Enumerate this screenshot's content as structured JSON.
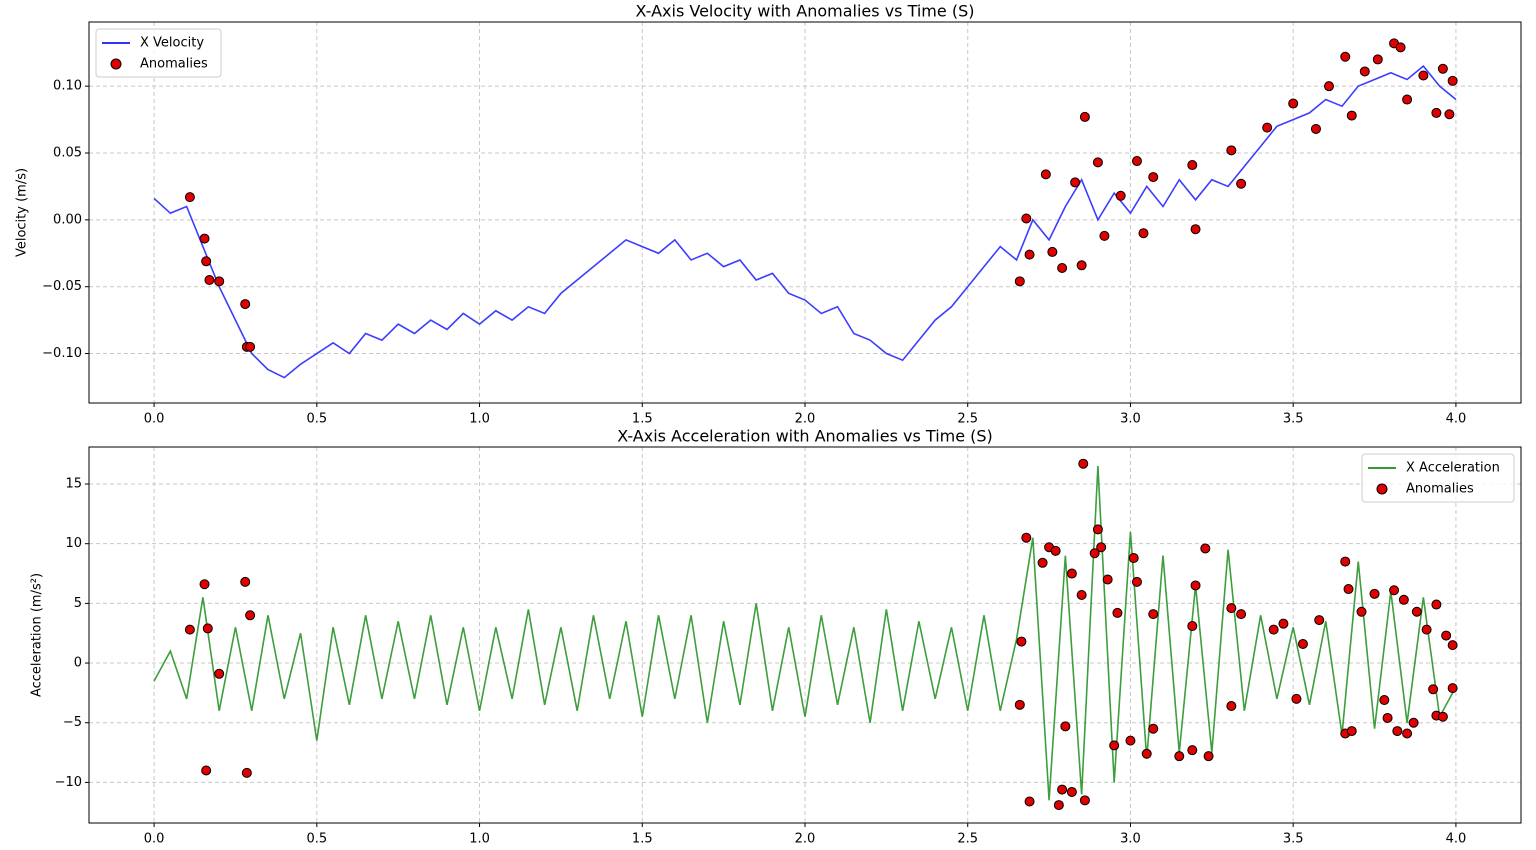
{
  "chart_data": [
    {
      "type": "line",
      "title": "X-Axis Velocity with Anomalies vs Time (S)",
      "y_label": "Velocity (m/s)",
      "xlim": [
        -0.2,
        4.2
      ],
      "ylim": [
        -0.137,
        0.148
      ],
      "grid": true,
      "legend": "upper left",
      "xticks": [
        {
          "value": 0,
          "label": "0.0"
        },
        {
          "value": 0.5,
          "label": "0.5"
        },
        {
          "value": 1,
          "label": "1.0"
        },
        {
          "value": 1.5,
          "label": "1.5"
        },
        {
          "value": 2,
          "label": "2.0"
        },
        {
          "value": 2.5,
          "label": "2.5"
        },
        {
          "value": 3,
          "label": "3.0"
        },
        {
          "value": 3.5,
          "label": "3.5"
        },
        {
          "value": 4,
          "label": "4.0"
        }
      ],
      "yticks": [
        {
          "value": -0.1,
          "label": "−0.10"
        },
        {
          "value": -0.05,
          "label": "−0.05"
        },
        {
          "value": 0,
          "label": "0.00"
        },
        {
          "value": 0.05,
          "label": "0.05"
        },
        {
          "value": 0.1,
          "label": "0.10"
        }
      ],
      "series": [
        {
          "name": "X Velocity",
          "kind": "line",
          "color": "#3333ff",
          "x": [
            0,
            0.05,
            0.1,
            0.15,
            0.2,
            0.25,
            0.3,
            0.35,
            0.4,
            0.45,
            0.5,
            0.55,
            0.6,
            0.65,
            0.7,
            0.75,
            0.8,
            0.85,
            0.9,
            0.95,
            1,
            1.05,
            1.1,
            1.15,
            1.2,
            1.25,
            1.3,
            1.35,
            1.4,
            1.45,
            1.5,
            1.55,
            1.6,
            1.65,
            1.7,
            1.75,
            1.8,
            1.85,
            1.9,
            1.95,
            2,
            2.05,
            2.1,
            2.15,
            2.2,
            2.25,
            2.3,
            2.35,
            2.4,
            2.45,
            2.5,
            2.55,
            2.6,
            2.65,
            2.7,
            2.75,
            2.8,
            2.85,
            2.9,
            2.95,
            3,
            3.05,
            3.1,
            3.15,
            3.2,
            3.25,
            3.3,
            3.35,
            3.4,
            3.45,
            3.5,
            3.55,
            3.6,
            3.65,
            3.7,
            3.75,
            3.8,
            3.85,
            3.9,
            3.95,
            4
          ],
          "values": [
            0.016,
            0.005,
            0.01,
            -0.02,
            -0.05,
            -0.075,
            -0.1,
            -0.112,
            -0.118,
            -0.108,
            -0.1,
            -0.092,
            -0.1,
            -0.085,
            -0.09,
            -0.078,
            -0.085,
            -0.075,
            -0.082,
            -0.07,
            -0.078,
            -0.068,
            -0.075,
            -0.065,
            -0.07,
            -0.055,
            -0.045,
            -0.035,
            -0.025,
            -0.015,
            -0.02,
            -0.025,
            -0.015,
            -0.03,
            -0.025,
            -0.035,
            -0.03,
            -0.045,
            -0.04,
            -0.055,
            -0.06,
            -0.07,
            -0.065,
            -0.085,
            -0.09,
            -0.1,
            -0.105,
            -0.09,
            -0.075,
            -0.065,
            -0.05,
            -0.035,
            -0.02,
            -0.03,
            0,
            -0.015,
            0.01,
            0.03,
            0,
            0.02,
            0.005,
            0.025,
            0.01,
            0.03,
            0.015,
            0.03,
            0.025,
            0.04,
            0.055,
            0.07,
            0.075,
            0.08,
            0.09,
            0.085,
            0.1,
            0.105,
            0.11,
            0.105,
            0.115,
            0.1,
            0.09
          ]
        },
        {
          "name": "Anomalies",
          "kind": "scatter",
          "color": "#e00000",
          "x": [
            0.11,
            0.155,
            0.16,
            0.17,
            0.2,
            0.28,
            0.285,
            0.295,
            2.66,
            2.68,
            2.69,
            2.74,
            2.76,
            2.79,
            2.83,
            2.85,
            2.86,
            2.9,
            2.92,
            2.97,
            3.02,
            3.04,
            3.07,
            3.19,
            3.2,
            3.31,
            3.34,
            3.42,
            3.5,
            3.57,
            3.61,
            3.66,
            3.68,
            3.72,
            3.76,
            3.81,
            3.83,
            3.85,
            3.9,
            3.94,
            3.96,
            3.98,
            3.99
          ],
          "values": [
            0.017,
            -0.014,
            -0.031,
            -0.045,
            -0.046,
            -0.063,
            -0.095,
            -0.095,
            -0.046,
            0.001,
            -0.026,
            0.034,
            -0.024,
            -0.036,
            0.028,
            -0.034,
            0.077,
            0.043,
            -0.012,
            0.018,
            0.044,
            -0.01,
            0.032,
            0.041,
            -0.007,
            0.052,
            0.027,
            0.069,
            0.087,
            0.068,
            0.1,
            0.122,
            0.078,
            0.111,
            0.12,
            0.132,
            0.129,
            0.09,
            0.108,
            0.08,
            0.113,
            0.079,
            0.104
          ]
        }
      ]
    },
    {
      "type": "line",
      "title": "X-Axis Acceleration with Anomalies vs Time (S)",
      "y_label": "Acceleration (m/s²)",
      "xlim": [
        -0.2,
        4.2
      ],
      "ylim": [
        -13.4,
        18.1
      ],
      "grid": true,
      "legend": "upper right",
      "xticks": [
        {
          "value": 0,
          "label": "0.0"
        },
        {
          "value": 0.5,
          "label": "0.5"
        },
        {
          "value": 1,
          "label": "1.0"
        },
        {
          "value": 1.5,
          "label": "1.5"
        },
        {
          "value": 2,
          "label": "2.0"
        },
        {
          "value": 2.5,
          "label": "2.5"
        },
        {
          "value": 3,
          "label": "3.0"
        },
        {
          "value": 3.5,
          "label": "3.5"
        },
        {
          "value": 4,
          "label": "4.0"
        }
      ],
      "yticks": [
        {
          "value": -10,
          "label": "−10"
        },
        {
          "value": -5,
          "label": "−5"
        },
        0,
        5,
        10,
        15
      ],
      "series": [
        {
          "name": "X Acceleration",
          "kind": "line",
          "color": "#339933",
          "x": [
            0,
            0.05,
            0.1,
            0.15,
            0.2,
            0.25,
            0.3,
            0.35,
            0.4,
            0.45,
            0.5,
            0.55,
            0.6,
            0.65,
            0.7,
            0.75,
            0.8,
            0.85,
            0.9,
            0.95,
            1,
            1.05,
            1.1,
            1.15,
            1.2,
            1.25,
            1.3,
            1.35,
            1.4,
            1.45,
            1.5,
            1.55,
            1.6,
            1.65,
            1.7,
            1.75,
            1.8,
            1.85,
            1.9,
            1.95,
            2,
            2.05,
            2.1,
            2.15,
            2.2,
            2.25,
            2.3,
            2.35,
            2.4,
            2.45,
            2.5,
            2.55,
            2.6,
            2.65,
            2.7,
            2.75,
            2.8,
            2.85,
            2.9,
            2.95,
            3,
            3.05,
            3.1,
            3.15,
            3.2,
            3.25,
            3.3,
            3.35,
            3.4,
            3.45,
            3.5,
            3.55,
            3.6,
            3.65,
            3.7,
            3.75,
            3.8,
            3.85,
            3.9,
            3.95,
            4
          ],
          "values": [
            -1.5,
            1,
            -3,
            5.5,
            -4,
            3,
            -4,
            4,
            -3,
            2.5,
            -6.5,
            3,
            -3.5,
            4,
            -3,
            3.5,
            -3,
            4,
            -3.5,
            3,
            -4,
            3,
            -3,
            4.5,
            -3.5,
            3,
            -4,
            4,
            -3,
            3.5,
            -4.5,
            4,
            -3,
            4,
            -5,
            3.5,
            -3.5,
            5,
            -4,
            3,
            -4.5,
            4,
            -3.5,
            3,
            -5,
            4.5,
            -4,
            3.5,
            -3,
            3,
            -4,
            4,
            -4,
            2,
            10.5,
            -11.5,
            9,
            -11,
            16.5,
            -10,
            11,
            -8,
            9,
            -7.5,
            6.5,
            -7.5,
            9.5,
            -4,
            4,
            -3,
            3,
            -3.5,
            3.5,
            -6,
            8.5,
            -5.5,
            6,
            -5,
            5.5,
            -4.5,
            -2
          ]
        },
        {
          "name": "Anomalies",
          "kind": "scatter",
          "color": "#e00000",
          "x": [
            0.11,
            0.155,
            0.16,
            0.165,
            0.2,
            0.28,
            0.285,
            0.295,
            2.66,
            2.665,
            2.68,
            2.69,
            2.73,
            2.75,
            2.77,
            2.78,
            2.79,
            2.8,
            2.82,
            2.82,
            2.85,
            2.855,
            2.86,
            2.89,
            2.9,
            2.91,
            2.93,
            2.95,
            2.96,
            3,
            3.01,
            3.02,
            3.05,
            3.07,
            3.07,
            3.15,
            3.19,
            3.19,
            3.2,
            3.23,
            3.24,
            3.31,
            3.31,
            3.34,
            3.44,
            3.47,
            3.51,
            3.53,
            3.58,
            3.66,
            3.67,
            3.66,
            3.68,
            3.71,
            3.75,
            3.78,
            3.79,
            3.81,
            3.82,
            3.84,
            3.85,
            3.88,
            3.87,
            3.91,
            3.93,
            3.94,
            3.94,
            3.96,
            3.97,
            3.99,
            3.99
          ],
          "values": [
            2.8,
            6.6,
            -9,
            2.9,
            -0.9,
            6.8,
            -9.2,
            4,
            -3.5,
            1.8,
            10.5,
            -11.6,
            8.4,
            9.7,
            9.4,
            -11.9,
            -10.6,
            -5.3,
            -10.8,
            7.5,
            5.7,
            16.7,
            -11.5,
            9.2,
            11.2,
            9.7,
            7,
            -6.9,
            4.2,
            -6.5,
            8.8,
            6.8,
            -7.6,
            -5.5,
            4.1,
            -7.8,
            3.1,
            -7.3,
            6.5,
            9.6,
            -7.8,
            4.6,
            -3.6,
            4.1,
            2.8,
            3.3,
            -3,
            1.6,
            3.6,
            8.5,
            6.2,
            -5.9,
            -5.7,
            4.3,
            5.8,
            -3.1,
            -4.6,
            6.1,
            -5.7,
            5.3,
            -5.9,
            4.3,
            -5,
            2.8,
            -2.2,
            4.9,
            -4.4,
            -4.5,
            2.3,
            -2.1,
            1.5
          ]
        }
      ]
    }
  ]
}
